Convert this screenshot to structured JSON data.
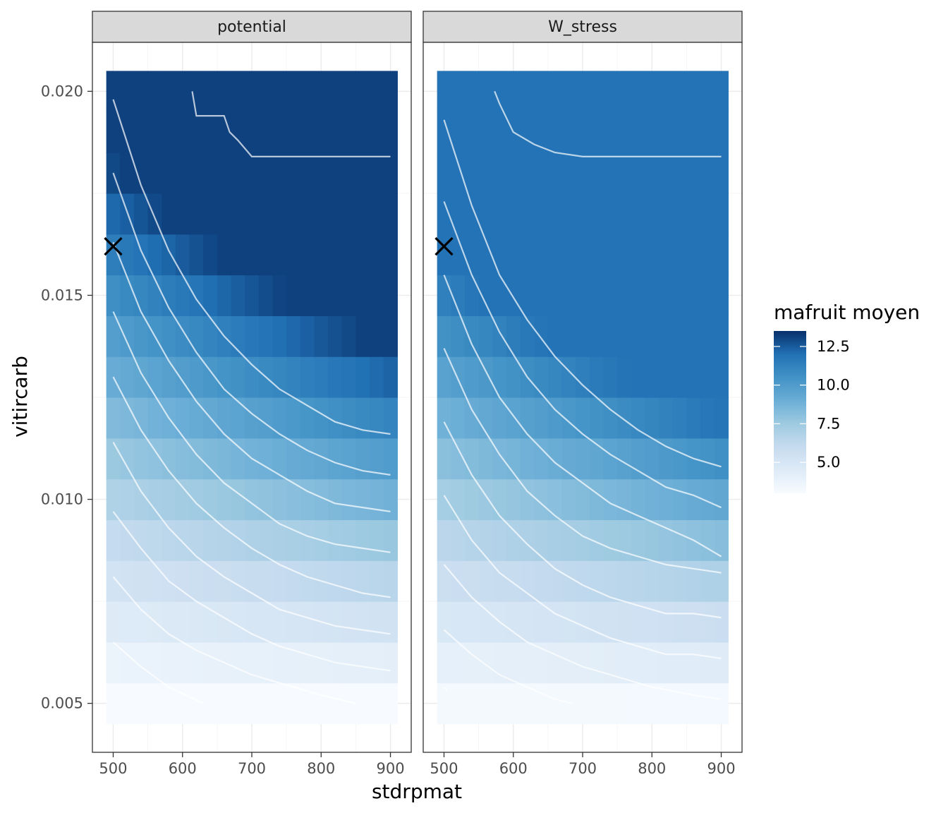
{
  "chart_data": {
    "type": "heatmap",
    "facets": [
      "potential",
      "W_stress"
    ],
    "xlabel": "stdrpmat",
    "ylabel": "vitircarb",
    "x_ticks": [
      500,
      600,
      700,
      800,
      900
    ],
    "y_ticks": [
      "0.005",
      "0.010",
      "0.015",
      "0.020"
    ],
    "x_tick_values": [
      500,
      600,
      700,
      800,
      900
    ],
    "y_tick_values": [
      0.005,
      0.01,
      0.015,
      0.02
    ],
    "xlim": [
      470,
      930
    ],
    "ylim": [
      0.0038,
      0.0212
    ],
    "x_grid": [
      500,
      520,
      540,
      560,
      580,
      600,
      620,
      640,
      660,
      680,
      700,
      720,
      740,
      760,
      780,
      800,
      820,
      840,
      860,
      880,
      900
    ],
    "y_grid": [
      0.005,
      0.006,
      0.007,
      0.008,
      0.009,
      0.01,
      0.011,
      0.012,
      0.013,
      0.014,
      0.015,
      0.016,
      0.017,
      0.018,
      0.019,
      0.02
    ],
    "legend": {
      "title": "mafruit moyen",
      "labels": [
        "12.5",
        "10.0",
        "7.5",
        "5.0"
      ],
      "label_values": [
        12.5,
        10.0,
        7.5,
        5.0
      ],
      "range": [
        3.0,
        13.5
      ],
      "colors": [
        "#F7FBFF",
        "#DEEBF7",
        "#C6DBEF",
        "#9ECAE1",
        "#6BAED6",
        "#4292C6",
        "#2171B5",
        "#08306B"
      ]
    },
    "marker": {
      "symbol": "x",
      "x": 500,
      "y": 0.0162,
      "color": "#000000"
    },
    "panels": [
      {
        "name": "potential",
        "value_model": {
          "a": 2.9,
          "b": 1.8,
          "y0": 0.0049,
          "y_scale": 0.0108,
          "x_scale": 700,
          "x_weight": 0.9,
          "max": 13.1
        },
        "contours": [
          [
            [
              500,
              0.0065
            ],
            [
              540,
              0.0059
            ],
            [
              580,
              0.0054
            ],
            [
              630,
              0.005
            ]
          ],
          [
            [
              500,
              0.0081
            ],
            [
              540,
              0.0073
            ],
            [
              580,
              0.0067
            ],
            [
              620,
              0.0063
            ],
            [
              660,
              0.006
            ],
            [
              700,
              0.0057
            ],
            [
              740,
              0.0055
            ],
            [
              800,
              0.0052
            ],
            [
              850,
              0.005
            ]
          ],
          [
            [
              500,
              0.0097
            ],
            [
              540,
              0.0088
            ],
            [
              580,
              0.008
            ],
            [
              620,
              0.0075
            ],
            [
              660,
              0.0071
            ],
            [
              700,
              0.0067
            ],
            [
              740,
              0.0064
            ],
            [
              780,
              0.0062
            ],
            [
              820,
              0.006
            ],
            [
              860,
              0.0059
            ],
            [
              900,
              0.0058
            ]
          ],
          [
            [
              500,
              0.0114
            ],
            [
              540,
              0.0102
            ],
            [
              580,
              0.0093
            ],
            [
              620,
              0.0086
            ],
            [
              660,
              0.0081
            ],
            [
              700,
              0.0077
            ],
            [
              740,
              0.0073
            ],
            [
              780,
              0.0071
            ],
            [
              820,
              0.0069
            ],
            [
              860,
              0.0068
            ],
            [
              900,
              0.0067
            ]
          ],
          [
            [
              500,
              0.013
            ],
            [
              540,
              0.0117
            ],
            [
              580,
              0.0107
            ],
            [
              620,
              0.0099
            ],
            [
              660,
              0.0093
            ],
            [
              700,
              0.0088
            ],
            [
              740,
              0.0084
            ],
            [
              780,
              0.0081
            ],
            [
              820,
              0.0079
            ],
            [
              860,
              0.0077
            ],
            [
              900,
              0.0076
            ]
          ],
          [
            [
              500,
              0.0146
            ],
            [
              540,
              0.0131
            ],
            [
              580,
              0.012
            ],
            [
              620,
              0.0111
            ],
            [
              660,
              0.0104
            ],
            [
              700,
              0.0099
            ],
            [
              740,
              0.0094
            ],
            [
              780,
              0.0091
            ],
            [
              820,
              0.0089
            ],
            [
              860,
              0.0088
            ],
            [
              900,
              0.0087
            ]
          ],
          [
            [
              500,
              0.0163
            ],
            [
              540,
              0.0146
            ],
            [
              580,
              0.0134
            ],
            [
              620,
              0.0124
            ],
            [
              660,
              0.0116
            ],
            [
              700,
              0.011
            ],
            [
              740,
              0.0106
            ],
            [
              780,
              0.0102
            ],
            [
              820,
              0.0099
            ],
            [
              860,
              0.0098
            ],
            [
              900,
              0.0097
            ]
          ],
          [
            [
              500,
              0.018
            ],
            [
              540,
              0.0161
            ],
            [
              580,
              0.0147
            ],
            [
              620,
              0.0136
            ],
            [
              660,
              0.0127
            ],
            [
              700,
              0.0121
            ],
            [
              740,
              0.0116
            ],
            [
              780,
              0.0112
            ],
            [
              820,
              0.0109
            ],
            [
              860,
              0.0107
            ],
            [
              900,
              0.0106
            ]
          ],
          [
            [
              500,
              0.0198
            ],
            [
              540,
              0.0177
            ],
            [
              580,
              0.0161
            ],
            [
              620,
              0.0149
            ],
            [
              660,
              0.014
            ],
            [
              700,
              0.0133
            ],
            [
              740,
              0.0127
            ],
            [
              780,
              0.0123
            ],
            [
              820,
              0.0119
            ],
            [
              860,
              0.0117
            ],
            [
              900,
              0.0116
            ]
          ],
          [
            [
              614,
              0.02
            ],
            [
              620,
              0.0194
            ],
            [
              660,
              0.0194
            ],
            [
              668,
              0.019
            ],
            [
              680,
              0.0188
            ],
            [
              700,
              0.0184
            ],
            [
              900,
              0.0184
            ]
          ]
        ]
      },
      {
        "name": "W_stress",
        "value_model": {
          "a": 3.1,
          "b": 1.8,
          "y0": 0.0049,
          "y_scale": 0.0102,
          "x_scale": 700,
          "x_weight": 0.9,
          "max": 11.9
        },
        "contours": [
          [
            [
              500,
              0.0054
            ],
            [
              505,
              0.0053
            ]
          ],
          [
            [
              500,
              0.0068
            ],
            [
              540,
              0.0062
            ],
            [
              580,
              0.0057
            ],
            [
              620,
              0.0054
            ],
            [
              660,
              0.0051
            ],
            [
              685,
              0.005
            ]
          ],
          [
            [
              500,
              0.0084
            ],
            [
              540,
              0.0076
            ],
            [
              580,
              0.007
            ],
            [
              620,
              0.0065
            ],
            [
              660,
              0.0062
            ],
            [
              700,
              0.0059
            ],
            [
              740,
              0.0057
            ],
            [
              800,
              0.0054
            ],
            [
              860,
              0.0052
            ],
            [
              900,
              0.0051
            ]
          ],
          [
            [
              500,
              0.0101
            ],
            [
              540,
              0.009
            ],
            [
              580,
              0.0082
            ],
            [
              620,
              0.0077
            ],
            [
              660,
              0.0072
            ],
            [
              700,
              0.0069
            ],
            [
              740,
              0.0066
            ],
            [
              780,
              0.0064
            ],
            [
              820,
              0.0062
            ],
            [
              860,
              0.0062
            ],
            [
              900,
              0.0061
            ]
          ],
          [
            [
              500,
              0.0119
            ],
            [
              540,
              0.0106
            ],
            [
              580,
              0.0096
            ],
            [
              620,
              0.0089
            ],
            [
              660,
              0.0083
            ],
            [
              700,
              0.0079
            ],
            [
              740,
              0.0076
            ],
            [
              780,
              0.0074
            ],
            [
              820,
              0.0072
            ],
            [
              860,
              0.0072
            ],
            [
              900,
              0.0071
            ]
          ],
          [
            [
              500,
              0.0137
            ],
            [
              540,
              0.0122
            ],
            [
              580,
              0.0111
            ],
            [
              620,
              0.0102
            ],
            [
              660,
              0.0096
            ],
            [
              700,
              0.0091
            ],
            [
              740,
              0.0088
            ],
            [
              780,
              0.0086
            ],
            [
              820,
              0.0084
            ],
            [
              860,
              0.0083
            ],
            [
              900,
              0.0082
            ]
          ],
          [
            [
              500,
              0.0155
            ],
            [
              540,
              0.0138
            ],
            [
              580,
              0.0125
            ],
            [
              620,
              0.0116
            ],
            [
              660,
              0.0109
            ],
            [
              700,
              0.0104
            ],
            [
              740,
              0.0099
            ],
            [
              780,
              0.0096
            ],
            [
              820,
              0.0093
            ],
            [
              860,
              0.009
            ],
            [
              900,
              0.0086
            ]
          ],
          [
            [
              500,
              0.0173
            ],
            [
              540,
              0.0155
            ],
            [
              580,
              0.0141
            ],
            [
              620,
              0.013
            ],
            [
              660,
              0.0122
            ],
            [
              700,
              0.0116
            ],
            [
              740,
              0.0111
            ],
            [
              780,
              0.0107
            ],
            [
              820,
              0.0103
            ],
            [
              860,
              0.0101
            ],
            [
              900,
              0.0098
            ]
          ],
          [
            [
              500,
              0.0193
            ],
            [
              540,
              0.0172
            ],
            [
              580,
              0.0155
            ],
            [
              620,
              0.0144
            ],
            [
              660,
              0.0135
            ],
            [
              700,
              0.0128
            ],
            [
              740,
              0.0122
            ],
            [
              780,
              0.0117
            ],
            [
              820,
              0.0113
            ],
            [
              860,
              0.011
            ],
            [
              900,
              0.0108
            ]
          ],
          [
            [
              573,
              0.02
            ],
            [
              580,
              0.0197
            ],
            [
              600,
              0.019
            ],
            [
              630,
              0.0187
            ],
            [
              660,
              0.0185
            ],
            [
              700,
              0.0184
            ],
            [
              900,
              0.0184
            ]
          ]
        ]
      }
    ]
  }
}
